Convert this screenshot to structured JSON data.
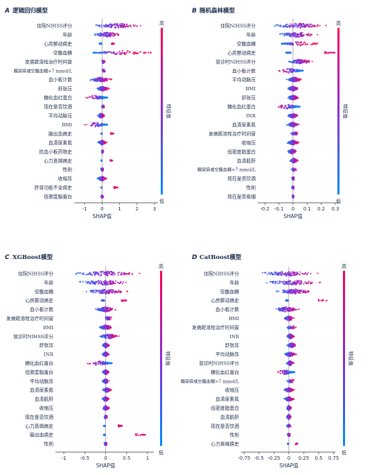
{
  "colorbar": {
    "high": "高",
    "low": "低",
    "title": "特征值",
    "high_color": "#ff0052",
    "low_color": "#008bfb"
  },
  "chart_data": [
    {
      "type": "scatter",
      "letter": "A",
      "title": "逻辑回归模型",
      "xlabel": "SHAP值",
      "xlim": [
        -1.6,
        3.2
      ],
      "xticks": [
        -1,
        0,
        1,
        2,
        3
      ],
      "features": [
        {
          "name": "住院NIHSS评分",
          "min": -1.0,
          "max": 2.6,
          "kind": "broad"
        },
        {
          "name": "年龄",
          "min": -0.7,
          "max": 1.3,
          "kind": "broad"
        },
        {
          "name": "心房颤动病史",
          "min": -0.15,
          "max": 0.7,
          "kind": "binary"
        },
        {
          "name": "空腹血糖",
          "min": -0.5,
          "max": 2.8,
          "kind": "skew"
        },
        {
          "name": "发病距溶栓治疗时间窗",
          "min": -0.05,
          "max": 0.2,
          "kind": "narrow"
        },
        {
          "name": "糖尿病或空腹血糖>7 mmol/L",
          "min": -0.05,
          "max": 0.2,
          "kind": "narrow"
        },
        {
          "name": "血小板计数",
          "min": -0.9,
          "max": 0.7,
          "kind": "broad"
        },
        {
          "name": "舒张压",
          "min": -0.4,
          "max": 0.5,
          "kind": "broad"
        },
        {
          "name": "糖化血红蛋白",
          "min": -1.1,
          "max": 0.3,
          "kind": "left"
        },
        {
          "name": "现在是否饮酒",
          "min": -0.05,
          "max": 0.15,
          "kind": "narrow"
        },
        {
          "name": "平均动脉压",
          "min": -0.3,
          "max": 0.2,
          "kind": "broad"
        },
        {
          "name": "BMI",
          "min": -1.1,
          "max": 0.3,
          "kind": "left"
        },
        {
          "name": "脑出血病史",
          "min": -0.05,
          "max": 0.65,
          "kind": "binary"
        },
        {
          "name": "血清尿素氮",
          "min": -0.3,
          "max": 0.3,
          "kind": "broad"
        },
        {
          "name": "抗血小板药物史",
          "min": -0.05,
          "max": 0.1,
          "kind": "narrow"
        },
        {
          "name": "心力衰竭病史",
          "min": -0.05,
          "max": 0.6,
          "kind": "binary"
        },
        {
          "name": "性别",
          "min": -0.1,
          "max": 0.1,
          "kind": "narrow"
        },
        {
          "name": "收缩压",
          "min": -0.3,
          "max": 0.3,
          "kind": "broad"
        },
        {
          "name": "肝肾功能不全病史",
          "min": -0.05,
          "max": 0.9,
          "kind": "binary"
        },
        {
          "name": "低密度脂蛋白",
          "min": -0.1,
          "max": 0.1,
          "kind": "narrow"
        }
      ]
    },
    {
      "type": "scatter",
      "letter": "B",
      "title": "随机森林模型",
      "xlabel": "SHAP值",
      "xlim": [
        -0.25,
        0.33
      ],
      "xticks": [
        -0.2,
        -0.1,
        0,
        0.1,
        0.2,
        0.3
      ],
      "features": [
        {
          "name": "住院NIHSS评分",
          "min": -0.2,
          "max": 0.28,
          "kind": "broad"
        },
        {
          "name": "年龄",
          "min": -0.15,
          "max": 0.2,
          "kind": "broad"
        },
        {
          "name": "空腹血糖",
          "min": -0.08,
          "max": 0.18,
          "kind": "skew"
        },
        {
          "name": "心房颤动病史",
          "min": -0.05,
          "max": 0.3,
          "kind": "binary"
        },
        {
          "name": "就诊时NIHSS评分",
          "min": -0.05,
          "max": 0.15,
          "kind": "broad"
        },
        {
          "name": "血小板计数",
          "min": -0.13,
          "max": 0.07,
          "kind": "left"
        },
        {
          "name": "平均动脉压",
          "min": -0.05,
          "max": 0.07,
          "kind": "broad"
        },
        {
          "name": "BMI",
          "min": -0.05,
          "max": 0.05,
          "kind": "broad"
        },
        {
          "name": "舒张压",
          "min": -0.05,
          "max": 0.05,
          "kind": "broad"
        },
        {
          "name": "糖化血红蛋白",
          "min": -0.15,
          "max": 0.05,
          "kind": "left"
        },
        {
          "name": "INR",
          "min": -0.05,
          "max": 0.05,
          "kind": "broad"
        },
        {
          "name": "血清尿素氮",
          "min": -0.05,
          "max": 0.05,
          "kind": "broad"
        },
        {
          "name": "发病距溶栓治疗时间窗",
          "min": -0.03,
          "max": 0.05,
          "kind": "narrow"
        },
        {
          "name": "收缩压",
          "min": -0.05,
          "max": 0.05,
          "kind": "broad"
        },
        {
          "name": "低密度脂蛋白",
          "min": -0.05,
          "max": 0.04,
          "kind": "broad"
        },
        {
          "name": "血清肌酐",
          "min": -0.03,
          "max": 0.04,
          "kind": "broad"
        },
        {
          "name": "糖尿病或空腹血糖>7 mmol/L",
          "min": -0.02,
          "max": 0.03,
          "kind": "narrow"
        },
        {
          "name": "现在是否饮酒",
          "min": -0.01,
          "max": 0.01,
          "kind": "narrow"
        },
        {
          "name": "性别",
          "min": -0.01,
          "max": 0.01,
          "kind": "narrow"
        },
        {
          "name": "现在是否吸烟",
          "min": -0.01,
          "max": 0.01,
          "kind": "narrow"
        }
      ]
    },
    {
      "type": "scatter",
      "letter": "C",
      "title": "XGBoost模型",
      "xlabel": "SHAP值",
      "xlim": [
        -1.2,
        1.15
      ],
      "xticks": [
        -1.0,
        -0.5,
        0.0,
        0.5,
        1.0
      ],
      "features": [
        {
          "name": "住院NIHSS评分",
          "min": -1.0,
          "max": 1.0,
          "kind": "broad"
        },
        {
          "name": "年龄",
          "min": -0.9,
          "max": 0.8,
          "kind": "broad"
        },
        {
          "name": "空腹血糖",
          "min": -0.6,
          "max": 0.6,
          "kind": "broad"
        },
        {
          "name": "心房颤动病史",
          "min": -0.1,
          "max": 0.5,
          "kind": "binary"
        },
        {
          "name": "血小板计数",
          "min": -0.3,
          "max": 0.3,
          "kind": "broad"
        },
        {
          "name": "发病距溶栓治疗时间窗",
          "min": -0.05,
          "max": 0.15,
          "kind": "narrow"
        },
        {
          "name": "BMI",
          "min": -0.2,
          "max": 0.2,
          "kind": "broad"
        },
        {
          "name": "就诊时NIHSS评分",
          "min": -0.2,
          "max": 0.35,
          "kind": "broad"
        },
        {
          "name": "舒张压",
          "min": -0.1,
          "max": 0.1,
          "kind": "broad"
        },
        {
          "name": "INR",
          "min": -0.1,
          "max": 0.1,
          "kind": "broad"
        },
        {
          "name": "糖化血红蛋白",
          "min": -0.5,
          "max": 0.15,
          "kind": "left"
        },
        {
          "name": "低密度脂蛋白",
          "min": -0.1,
          "max": 0.1,
          "kind": "broad"
        },
        {
          "name": "平均动脉压",
          "min": -0.1,
          "max": 0.1,
          "kind": "broad"
        },
        {
          "name": "血清尿素氮",
          "min": -0.1,
          "max": 0.15,
          "kind": "broad"
        },
        {
          "name": "血清肌酐",
          "min": -0.1,
          "max": 0.1,
          "kind": "broad"
        },
        {
          "name": "收缩压",
          "min": -0.1,
          "max": 0.1,
          "kind": "broad"
        },
        {
          "name": "现在是否饮酒",
          "min": -0.05,
          "max": 0.05,
          "kind": "narrow"
        },
        {
          "name": "心力衰竭病史",
          "min": -0.05,
          "max": 0.4,
          "kind": "binary"
        },
        {
          "name": "脑出血病史",
          "min": -0.05,
          "max": 0.95,
          "kind": "binary"
        },
        {
          "name": "性别",
          "min": -0.05,
          "max": 0.05,
          "kind": "narrow"
        }
      ]
    },
    {
      "type": "scatter",
      "letter": "D",
      "title": "CatBoost模型",
      "xlabel": "SHAP值",
      "xlim": [
        -0.8,
        0.78
      ],
      "xticks": [
        -0.75,
        -0.5,
        -0.25,
        0.0,
        0.25,
        0.5,
        0.75
      ],
      "features": [
        {
          "name": "住院NIHSS评分",
          "min": -0.65,
          "max": 0.6,
          "kind": "broad"
        },
        {
          "name": "年龄",
          "min": -0.5,
          "max": 0.6,
          "kind": "broad"
        },
        {
          "name": "空腹血糖",
          "min": -0.3,
          "max": 0.5,
          "kind": "broad"
        },
        {
          "name": "心房颤动病史",
          "min": -0.05,
          "max": 0.65,
          "kind": "binary"
        },
        {
          "name": "血小板计数",
          "min": -0.3,
          "max": 0.2,
          "kind": "broad"
        },
        {
          "name": "BMI",
          "min": -0.1,
          "max": 0.1,
          "kind": "broad"
        },
        {
          "name": "发病距溶栓治疗时间窗",
          "min": -0.05,
          "max": 0.15,
          "kind": "narrow"
        },
        {
          "name": "INR",
          "min": -0.05,
          "max": 0.1,
          "kind": "broad"
        },
        {
          "name": "舒张压",
          "min": -0.05,
          "max": 0.15,
          "kind": "broad"
        },
        {
          "name": "平均动脉压",
          "min": -0.1,
          "max": 0.15,
          "kind": "broad"
        },
        {
          "name": "就诊时NIHSS评分",
          "min": -0.05,
          "max": 0.1,
          "kind": "broad"
        },
        {
          "name": "糖化血红蛋白",
          "min": -0.25,
          "max": 0.1,
          "kind": "left"
        },
        {
          "name": "糖尿病或空腹血糖>7 mmol/L",
          "min": -0.05,
          "max": 0.1,
          "kind": "narrow"
        },
        {
          "name": "收缩压",
          "min": -0.1,
          "max": 0.1,
          "kind": "broad"
        },
        {
          "name": "血清尿素氮",
          "min": -0.1,
          "max": 0.1,
          "kind": "broad"
        },
        {
          "name": "低密度脂蛋白",
          "min": -0.05,
          "max": 0.05,
          "kind": "broad"
        },
        {
          "name": "血清肌酐",
          "min": -0.05,
          "max": 0.05,
          "kind": "broad"
        },
        {
          "name": "现在是否饮酒",
          "min": -0.05,
          "max": 0.05,
          "kind": "narrow"
        },
        {
          "name": "性别",
          "min": -0.03,
          "max": 0.03,
          "kind": "narrow"
        },
        {
          "name": "心力衰竭病史",
          "min": -0.02,
          "max": 0.15,
          "kind": "binary"
        }
      ]
    }
  ]
}
